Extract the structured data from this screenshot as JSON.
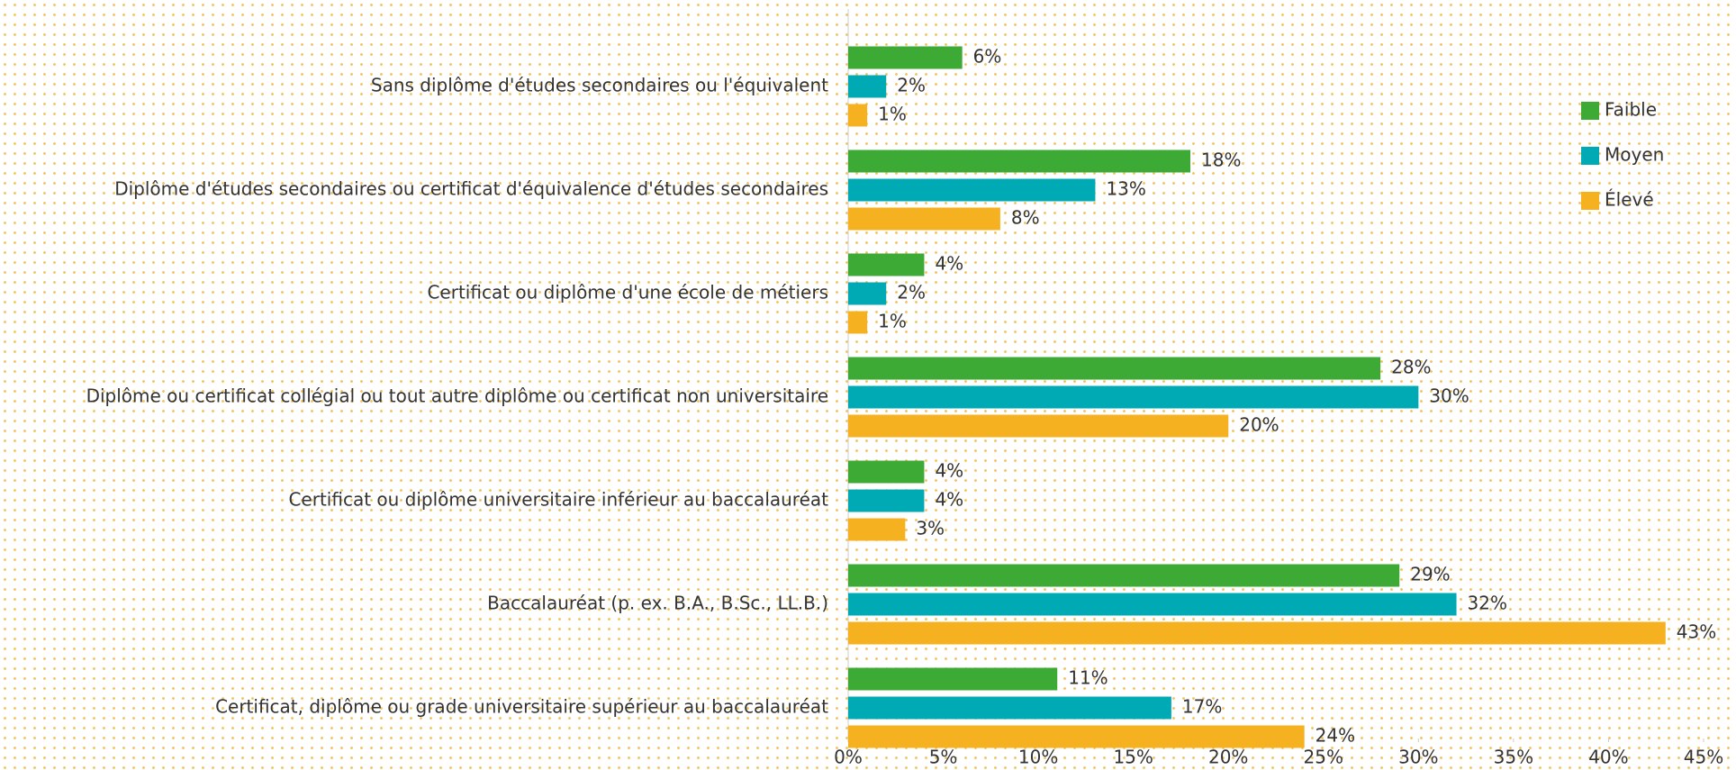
{
  "chart_data": {
    "type": "bar",
    "orientation": "horizontal",
    "categories": [
      "Sans diplôme d'études secondaires ou l'équivalent",
      "Diplôme d'études secondaires ou certificat d'équivalence d'études secondaires",
      "Certificat ou diplôme d'une école de métiers",
      "Diplôme ou certificat collégial ou tout autre diplôme ou certificat non universitaire",
      "Certificat ou diplôme universitaire inférieur au baccalauréat",
      "Baccalauréat (p. ex. B.A., B.Sc., LL.B.)",
      "Certificat, diplôme ou grade universitaire supérieur au baccalauréat"
    ],
    "series": [
      {
        "name": "Faible",
        "color": "#3daa35",
        "values": [
          6,
          18,
          4,
          28,
          4,
          29,
          11
        ],
        "value_labels": [
          "6%",
          "18%",
          "4%",
          "28%",
          "4%",
          "29%",
          "11%"
        ]
      },
      {
        "name": "Moyen",
        "color": "#00aab5",
        "values": [
          2,
          13,
          2,
          30,
          4,
          32,
          17
        ],
        "value_labels": [
          "2%",
          "13%",
          "2%",
          "30%",
          "4%",
          "32%",
          "17%"
        ]
      },
      {
        "name": "Élevé",
        "color": "#f5b120",
        "values": [
          1,
          8,
          1,
          20,
          3,
          43,
          24
        ],
        "value_labels": [
          "1%",
          "8%",
          "1%",
          "20%",
          "3%",
          "43%",
          "24%"
        ]
      }
    ],
    "xlim": [
      0,
      45
    ],
    "xticks": [
      {
        "value": 0,
        "label": "0%"
      },
      {
        "value": 5,
        "label": "5%"
      },
      {
        "value": 10,
        "label": "10%"
      },
      {
        "value": 15,
        "label": "15%"
      },
      {
        "value": 20,
        "label": "20%"
      },
      {
        "value": 25,
        "label": "25%"
      },
      {
        "value": 30,
        "label": "30%"
      },
      {
        "value": 35,
        "label": "35%"
      },
      {
        "value": 40,
        "label": "40%"
      },
      {
        "value": 45,
        "label": "45%"
      }
    ],
    "legend": "right"
  }
}
